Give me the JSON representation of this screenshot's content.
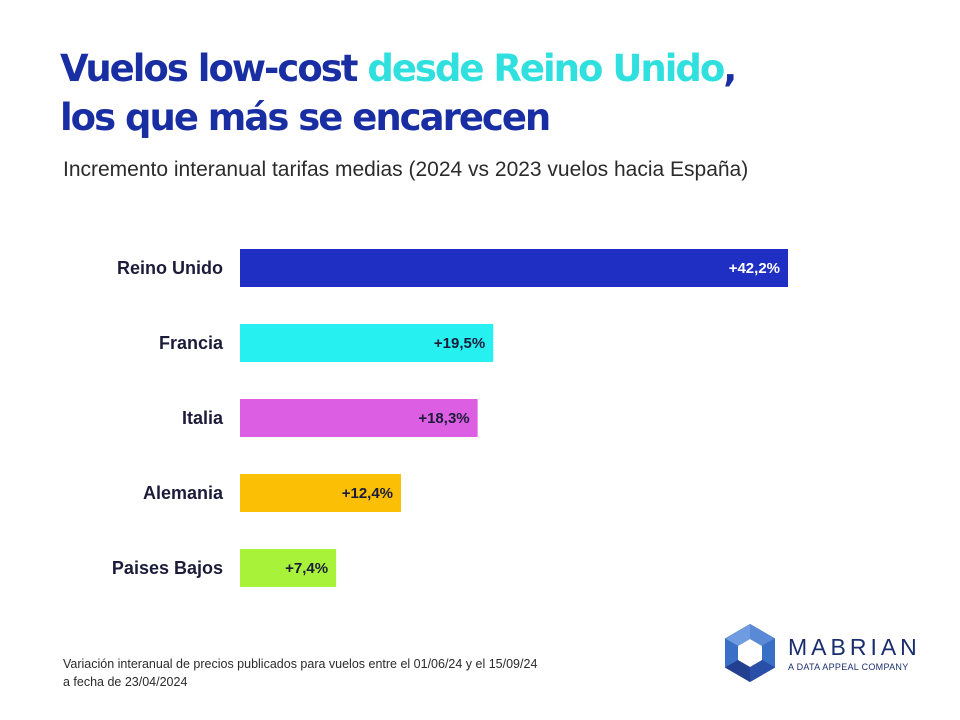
{
  "title": {
    "part1": "Vuelos low-cost ",
    "part2": "desde Reino Unido",
    "part3": ",",
    "line2": "los que más se encarecen"
  },
  "subtitle": "Incremento interanual tarifas medias (2024 vs 2023 vuelos hacia España)",
  "chart_data": {
    "type": "bar",
    "orientation": "horizontal",
    "categories": [
      "Reino Unido",
      "Francia",
      "Italia",
      "Alemania",
      "Paises Bajos"
    ],
    "values": [
      42.2,
      19.5,
      18.3,
      12.4,
      7.4
    ],
    "value_labels": [
      "+42,2%",
      "+19,5%",
      "+18,3%",
      "+12,4%",
      "+7,4%"
    ],
    "colors": [
      "#1f2fc4",
      "#27f0f0",
      "#dc5fe3",
      "#fbc005",
      "#a8f33a"
    ],
    "label_colors": [
      "#ffffff",
      "#1c1c3a",
      "#1c1c3a",
      "#1c1c3a",
      "#1c1c3a"
    ],
    "xlim": [
      0,
      42.2
    ],
    "grid": false,
    "legend": "none"
  },
  "footnote": {
    "line1": "Variación interanual de precios publicados para vuelos entre el 01/06/24 y el 15/09/24",
    "line2": "a fecha de 23/04/2024"
  },
  "logo": {
    "name": "MABRIAN",
    "tagline": "A DATA APPEAL COMPANY",
    "colors": [
      "#1a2e6e",
      "#3a6fc7",
      "#5a8ad6"
    ]
  }
}
